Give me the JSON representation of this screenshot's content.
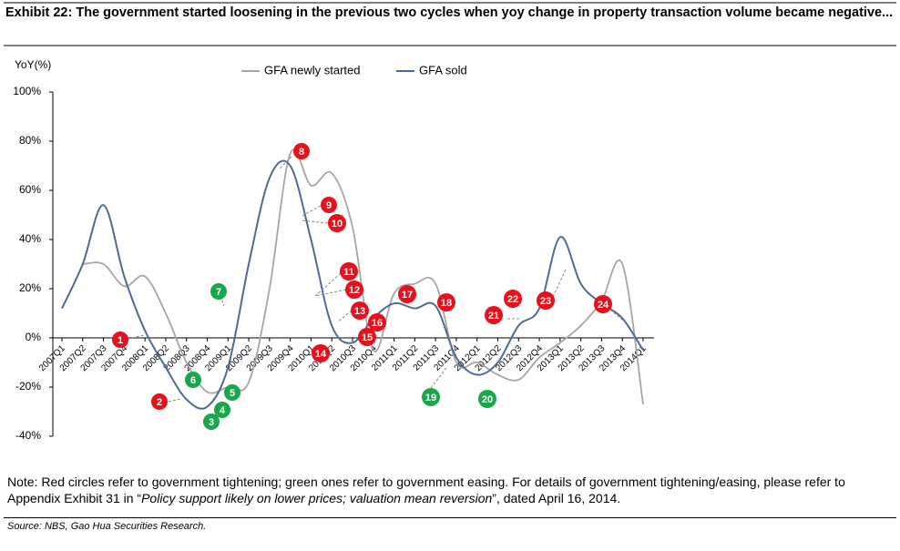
{
  "chart_data": {
    "type": "line",
    "title": "Exhibit 22: The government started loosening in the previous two cycles when yoy change in property transaction volume became negative...",
    "y_axis_label": "YoY(%)",
    "categories": [
      "2007Q1",
      "2007Q2",
      "2007Q3",
      "2007Q4",
      "2008Q1",
      "2008Q2",
      "2008Q3",
      "2008Q4",
      "2009Q1",
      "2009Q2",
      "2009Q3",
      "2009Q4",
      "2010Q1",
      "2010Q2",
      "2010Q3",
      "2010Q4",
      "2011Q1",
      "2011Q2",
      "2011Q3",
      "2011Q4",
      "2012Q1",
      "2012Q2",
      "2012Q3",
      "2012Q4",
      "2013Q1",
      "2013Q2",
      "2013Q3",
      "2013Q4",
      "2014Q1"
    ],
    "series": [
      {
        "name": "GFA newly started",
        "color": "#a6a6a6",
        "values": [
          null,
          30,
          30,
          21,
          25,
          10,
          -10,
          -22,
          -20,
          -18,
          20,
          75,
          62,
          67,
          45,
          -5,
          18,
          22,
          22,
          -10,
          -10,
          -15,
          -17,
          -8,
          -2,
          5,
          15,
          30,
          -27
        ]
      },
      {
        "name": "GFA sold",
        "color": "#4f6a9a",
        "values": [
          12,
          30,
          54,
          25,
          3,
          -12,
          -25,
          -28,
          -12,
          30,
          65,
          70,
          40,
          5,
          -2,
          8,
          14,
          12,
          13,
          -8,
          -15,
          -10,
          5,
          12,
          41,
          22,
          14,
          8,
          -5
        ]
      }
    ],
    "ylim": [
      -40,
      100
    ],
    "yticks": [
      {
        "value": -40,
        "label": "-40%"
      },
      {
        "value": -20,
        "label": "-20%"
      },
      {
        "value": 0,
        "label": "0%"
      },
      {
        "value": 20,
        "label": "20%"
      },
      {
        "value": 40,
        "label": "40%"
      },
      {
        "value": 60,
        "label": "60%"
      },
      {
        "value": 80,
        "label": "80%"
      },
      {
        "value": 100,
        "label": "100%"
      }
    ],
    "annotations": [
      {
        "label": "1",
        "color": "#e8101a"
      },
      {
        "label": "2",
        "color": "#e8101a"
      },
      {
        "label": "3",
        "color": "#1aa64a"
      },
      {
        "label": "4",
        "color": "#1aa64a"
      },
      {
        "label": "5",
        "color": "#1aa64a"
      },
      {
        "label": "6",
        "color": "#1aa64a"
      },
      {
        "label": "7",
        "color": "#1aa64a"
      },
      {
        "label": "8",
        "color": "#e8101a"
      },
      {
        "label": "9",
        "color": "#e8101a"
      },
      {
        "label": "10",
        "color": "#e8101a"
      },
      {
        "label": "11",
        "color": "#e8101a"
      },
      {
        "label": "12",
        "color": "#e8101a"
      },
      {
        "label": "13",
        "color": "#e8101a"
      },
      {
        "label": "14",
        "color": "#e8101a"
      },
      {
        "label": "15",
        "color": "#e8101a"
      },
      {
        "label": "16",
        "color": "#e8101a"
      },
      {
        "label": "17",
        "color": "#e8101a"
      },
      {
        "label": "18",
        "color": "#e8101a"
      },
      {
        "label": "19",
        "color": "#1aa64a"
      },
      {
        "label": "20",
        "color": "#1aa64a"
      },
      {
        "label": "21",
        "color": "#e8101a"
      },
      {
        "label": "22",
        "color": "#e8101a"
      },
      {
        "label": "23",
        "color": "#e8101a"
      },
      {
        "label": "24",
        "color": "#e8101a"
      }
    ]
  },
  "note": {
    "before": "Note: Red circles refer to government tightening; green ones refer to government easing. For details of government tightening/easing, please refer to Appendix Exhibit 31 in “",
    "italic": "Policy support likely on lower prices; valuation mean reversion",
    "after": "”, dated April 16, 2014."
  },
  "source": "Source: NBS, Gao Hua Securities Research."
}
